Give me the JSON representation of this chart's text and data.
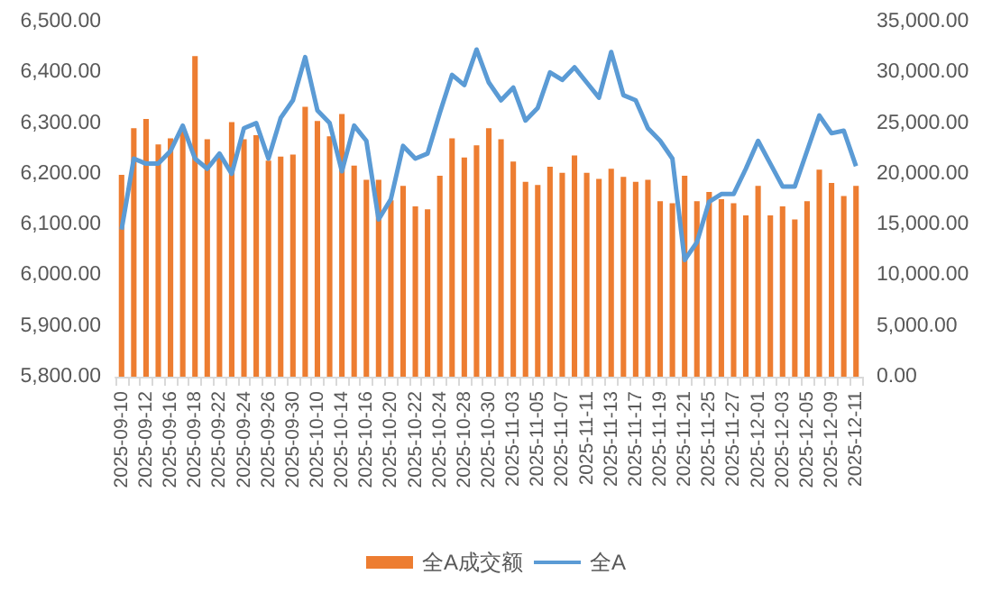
{
  "chart_data": {
    "type": "bar",
    "categories": [
      "2025-09-10",
      null,
      "2025-09-12",
      null,
      "2025-09-16",
      null,
      "2025-09-18",
      null,
      "2025-09-22",
      null,
      "2025-09-24",
      null,
      "2025-09-26",
      null,
      "2025-09-30",
      null,
      "2025-10-10",
      null,
      "2025-10-14",
      null,
      "2025-10-16",
      null,
      "2025-10-20",
      null,
      "2025-10-22",
      null,
      "2025-10-24",
      null,
      "2025-10-28",
      null,
      "2025-10-30",
      null,
      "2025-11-03",
      null,
      "2025-11-05",
      null,
      "2025-11-07",
      null,
      "2025-11-11",
      null,
      "2025-11-13",
      null,
      "2025-11-17",
      null,
      "2025-11-19",
      null,
      "2025-11-21",
      null,
      "2025-11-25",
      null,
      "2025-11-27",
      null,
      "2025-12-01",
      null,
      "2025-12-03",
      null,
      "2025-12-05",
      null,
      "2025-12-09",
      null,
      "2025-12-11"
    ],
    "series": [
      {
        "name": "全A成交额",
        "axis": "y2",
        "color": "#ed7d31",
        "values": [
          19900,
          24500,
          25400,
          22900,
          23500,
          24200,
          31600,
          23400,
          21900,
          25100,
          23400,
          23800,
          21300,
          21700,
          21900,
          26600,
          25200,
          23700,
          25900,
          20800,
          19400,
          19400,
          17400,
          18800,
          16800,
          16500,
          19800,
          23500,
          21600,
          22800,
          24500,
          23400,
          21200,
          19200,
          18900,
          20700,
          20100,
          21800,
          20100,
          19500,
          20500,
          19700,
          19200,
          19400,
          17300,
          17100,
          19800,
          17300,
          18200,
          17500,
          17100,
          15900,
          18800,
          15900,
          16800,
          15500,
          17300,
          20400,
          19100,
          17800,
          18800
        ]
      },
      {
        "name": "全A",
        "type": "line",
        "color": "#5b9bd5",
        "values": [
          6090,
          6230,
          6220,
          6220,
          6245,
          6295,
          6230,
          6210,
          6240,
          6200,
          6290,
          6300,
          6230,
          6310,
          6345,
          6430,
          6325,
          6300,
          6205,
          6295,
          6265,
          6110,
          6150,
          6255,
          6230,
          6240,
          6320,
          6395,
          6375,
          6445,
          6380,
          6345,
          6370,
          6305,
          6330,
          6400,
          6385,
          6410,
          6380,
          6350,
          6440,
          6355,
          6345,
          6290,
          6265,
          6230,
          6030,
          6065,
          6145,
          6160,
          6160,
          6210,
          6265,
          6220,
          6175,
          6175,
          6245,
          6315,
          6280,
          6285,
          6215
        ]
      }
    ],
    "ylim": [
      5800,
      6500
    ],
    "yticks": [
      {
        "value": 5800,
        "label": "5,800.00"
      },
      {
        "value": 5900,
        "label": "5,900.00"
      },
      {
        "value": 6000,
        "label": "6,000.00"
      },
      {
        "value": 6100,
        "label": "6,100.00"
      },
      {
        "value": 6200,
        "label": "6,200.00"
      },
      {
        "value": 6300,
        "label": "6,300.00"
      },
      {
        "value": 6400,
        "label": "6,400.00"
      },
      {
        "value": 6500,
        "label": "6,500.00"
      }
    ],
    "y2lim": [
      0,
      35000
    ],
    "y2ticks": [
      {
        "value": 0,
        "label": "0.00"
      },
      {
        "value": 5000,
        "label": "5,000.00"
      },
      {
        "value": 10000,
        "label": "10,000.00"
      },
      {
        "value": 15000,
        "label": "15,000.00"
      },
      {
        "value": 20000,
        "label": "20,000.00"
      },
      {
        "value": 25000,
        "label": "25,000.00"
      },
      {
        "value": 30000,
        "label": "30,000.00"
      },
      {
        "value": 35000,
        "label": "35,000.00"
      }
    ],
    "grid": false,
    "legend": "bottom",
    "marker": "none"
  }
}
